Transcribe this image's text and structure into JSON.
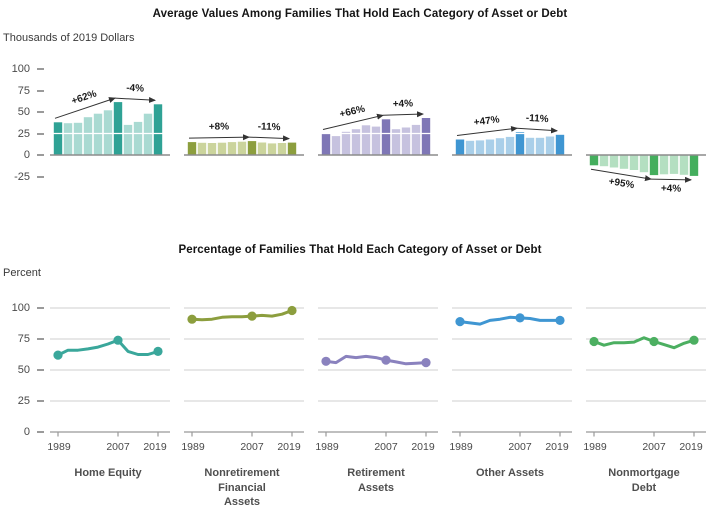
{
  "chart_data": {
    "years": [
      1989,
      1992,
      1995,
      1998,
      2001,
      2004,
      2007,
      2010,
      2013,
      2016,
      2019
    ],
    "highlight_year_indices": [
      0,
      6,
      10
    ],
    "xticks": [
      "1989",
      "2007",
      "2019"
    ],
    "top": {
      "type": "bar",
      "title": "Average Values Among Families That Hold Each Category of Asset or Debt",
      "ylabel": "Thousands of 2019 Dollars",
      "yticks": [
        100,
        75,
        50,
        25,
        0,
        -25
      ],
      "ylim": [
        -30,
        107
      ],
      "grid": false,
      "categories": [
        {
          "key": "home-equity",
          "name": "Home Equity",
          "color_dark": "#2FA295",
          "color_light": "#A9DAD2",
          "values": [
            38,
            37,
            37.5,
            44,
            48,
            52,
            61.5,
            35,
            38.5,
            48,
            59
          ],
          "changes": [
            {
              "label": "+62%",
              "from": 0,
              "to": 6
            },
            {
              "label": "-4%",
              "from": 6,
              "to": 10
            }
          ]
        },
        {
          "key": "nonretirement-financial-assets",
          "name": "Nonretirement Financial Assets",
          "color_dark": "#8C9E3E",
          "color_light": "#CBD49C",
          "values": [
            15,
            14.2,
            14,
            14.3,
            15,
            15.5,
            16.2,
            14.5,
            13.5,
            14,
            14.4
          ],
          "changes": [
            {
              "label": "+8%",
              "from": 0,
              "to": 6
            },
            {
              "label": "-11%",
              "from": 6,
              "to": 10
            }
          ]
        },
        {
          "key": "retirement-assets",
          "name": "Retirement Assets",
          "color_dark": "#7F77B6",
          "color_light": "#C6C2DF",
          "values": [
            25,
            22,
            27,
            30,
            34.5,
            33,
            41.5,
            30,
            32,
            35,
            43
          ],
          "changes": [
            {
              "label": "+66%",
              "from": 0,
              "to": 6
            },
            {
              "label": "+4%",
              "from": 6,
              "to": 10
            }
          ]
        },
        {
          "key": "other-assets",
          "name": "Other Assets",
          "color_dark": "#3F96D2",
          "color_light": "#A9CFE9",
          "values": [
            18,
            16.5,
            17,
            18,
            19.5,
            21,
            26.5,
            20,
            20,
            21.5,
            23.5
          ],
          "changes": [
            {
              "label": "+47%",
              "from": 0,
              "to": 6
            },
            {
              "label": "-11%",
              "from": 6,
              "to": 10
            }
          ]
        },
        {
          "key": "nonmortgage-debt",
          "name": "Nonmortgage Debt",
          "color_dark": "#44AE5D",
          "color_light": "#B4DFC1",
          "values": [
            -12,
            -13,
            -14.5,
            -16,
            -17.5,
            -20,
            -23.4,
            -22.5,
            -22,
            -23,
            -24.3
          ],
          "changes": [
            {
              "label": "+95%",
              "from": 0,
              "to": 6
            },
            {
              "label": "+4%",
              "from": 6,
              "to": 10
            }
          ]
        }
      ]
    },
    "bottom": {
      "type": "line",
      "title": "Percentage of Families That Hold Each Category of Asset or Debt",
      "ylabel": "Percent",
      "yticks": [
        100,
        75,
        50,
        25,
        0
      ],
      "ylim": [
        0,
        105
      ],
      "grid": true,
      "categories": [
        {
          "key": "home-equity",
          "name": "Home Equity",
          "label_lines": [
            "Home Equity"
          ],
          "color": "#3AA79B",
          "values": [
            62,
            66,
            66,
            67,
            68.5,
            71,
            74,
            65,
            62.5,
            62.5,
            65
          ]
        },
        {
          "key": "nonretirement-financial-assets",
          "name": "Nonretirement Financial Assets",
          "label_lines": [
            "Nonretirement",
            "Financial",
            "Assets"
          ],
          "color": "#8C9E3E",
          "values": [
            91,
            90.5,
            91,
            92.5,
            93,
            93,
            93.5,
            94,
            93.5,
            95,
            98
          ]
        },
        {
          "key": "retirement-assets",
          "name": "Retirement Assets",
          "label_lines": [
            "Retirement",
            "Assets"
          ],
          "color": "#8A82BE",
          "values": [
            57,
            56,
            61,
            60,
            61,
            60,
            58,
            56.5,
            55,
            55.5,
            56
          ]
        },
        {
          "key": "other-assets",
          "name": "Other Assets",
          "label_lines": [
            "Other Assets"
          ],
          "color": "#3F96D2",
          "values": [
            89,
            88,
            87,
            90,
            91,
            92.5,
            92,
            91.5,
            90,
            90,
            90
          ]
        },
        {
          "key": "nonmortgage-debt",
          "name": "Nonmortgage Debt",
          "label_lines": [
            "Nonmortgage",
            "Debt"
          ],
          "color": "#4CAF61",
          "values": [
            73,
            70,
            72,
            72,
            72.5,
            76,
            73,
            70.5,
            68,
            71.5,
            74
          ]
        }
      ]
    }
  }
}
